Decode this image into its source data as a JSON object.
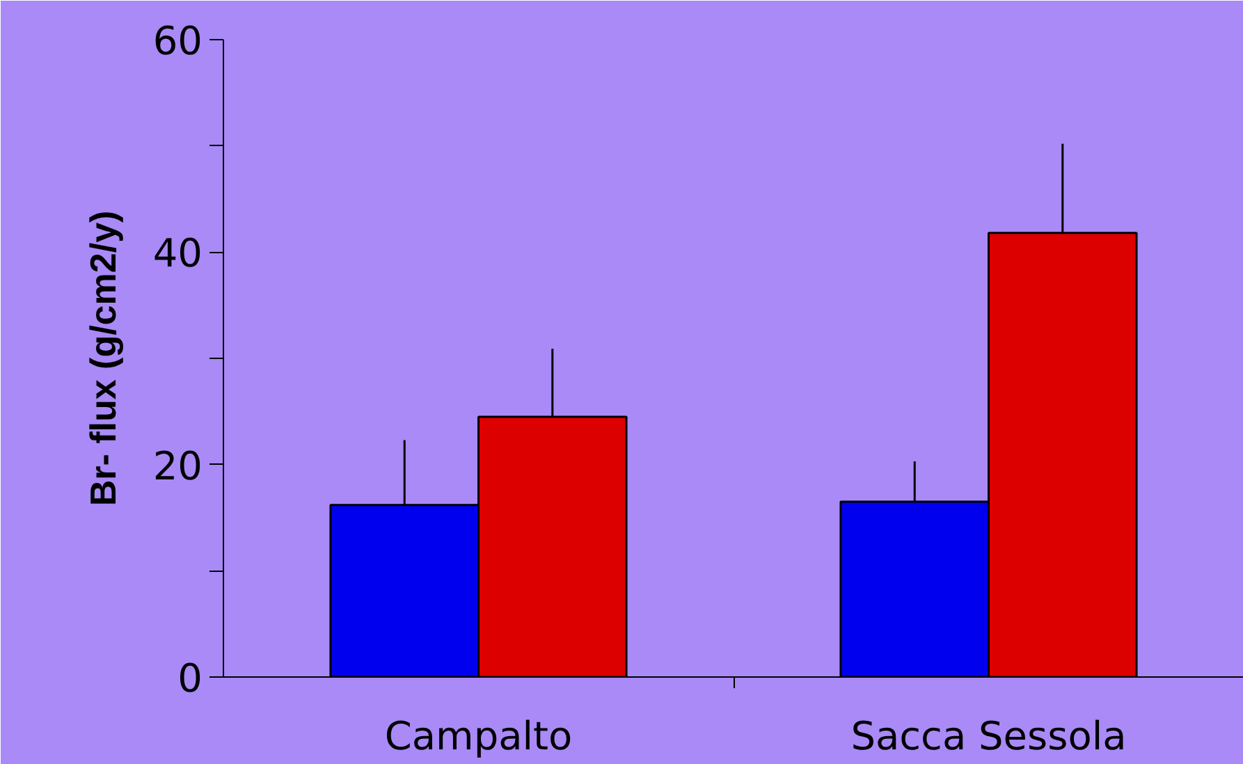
{
  "chart_data": {
    "type": "bar",
    "ylabel": "Br- flux (g/cm2/y)",
    "categories": [
      "Campalto",
      "Sacca Sessola"
    ],
    "series": [
      {
        "color": "#0000ee",
        "values": [
          16.2,
          16.5
        ],
        "errors": [
          [
            16.2,
            22.3
          ],
          [
            16.5,
            20.3
          ]
        ]
      },
      {
        "color": "#dd0000",
        "values": [
          24.5,
          41.8
        ],
        "errors": [
          [
            24.5,
            30.9
          ],
          [
            41.8,
            50.2
          ]
        ]
      }
    ],
    "ylim": [
      0,
      60
    ],
    "yticks": [
      0,
      {
        "value": 10,
        "label": null
      },
      20,
      {
        "value": 30,
        "label": null
      },
      40,
      {
        "value": 50,
        "label": null
      },
      60
    ],
    "grid": false
  }
}
